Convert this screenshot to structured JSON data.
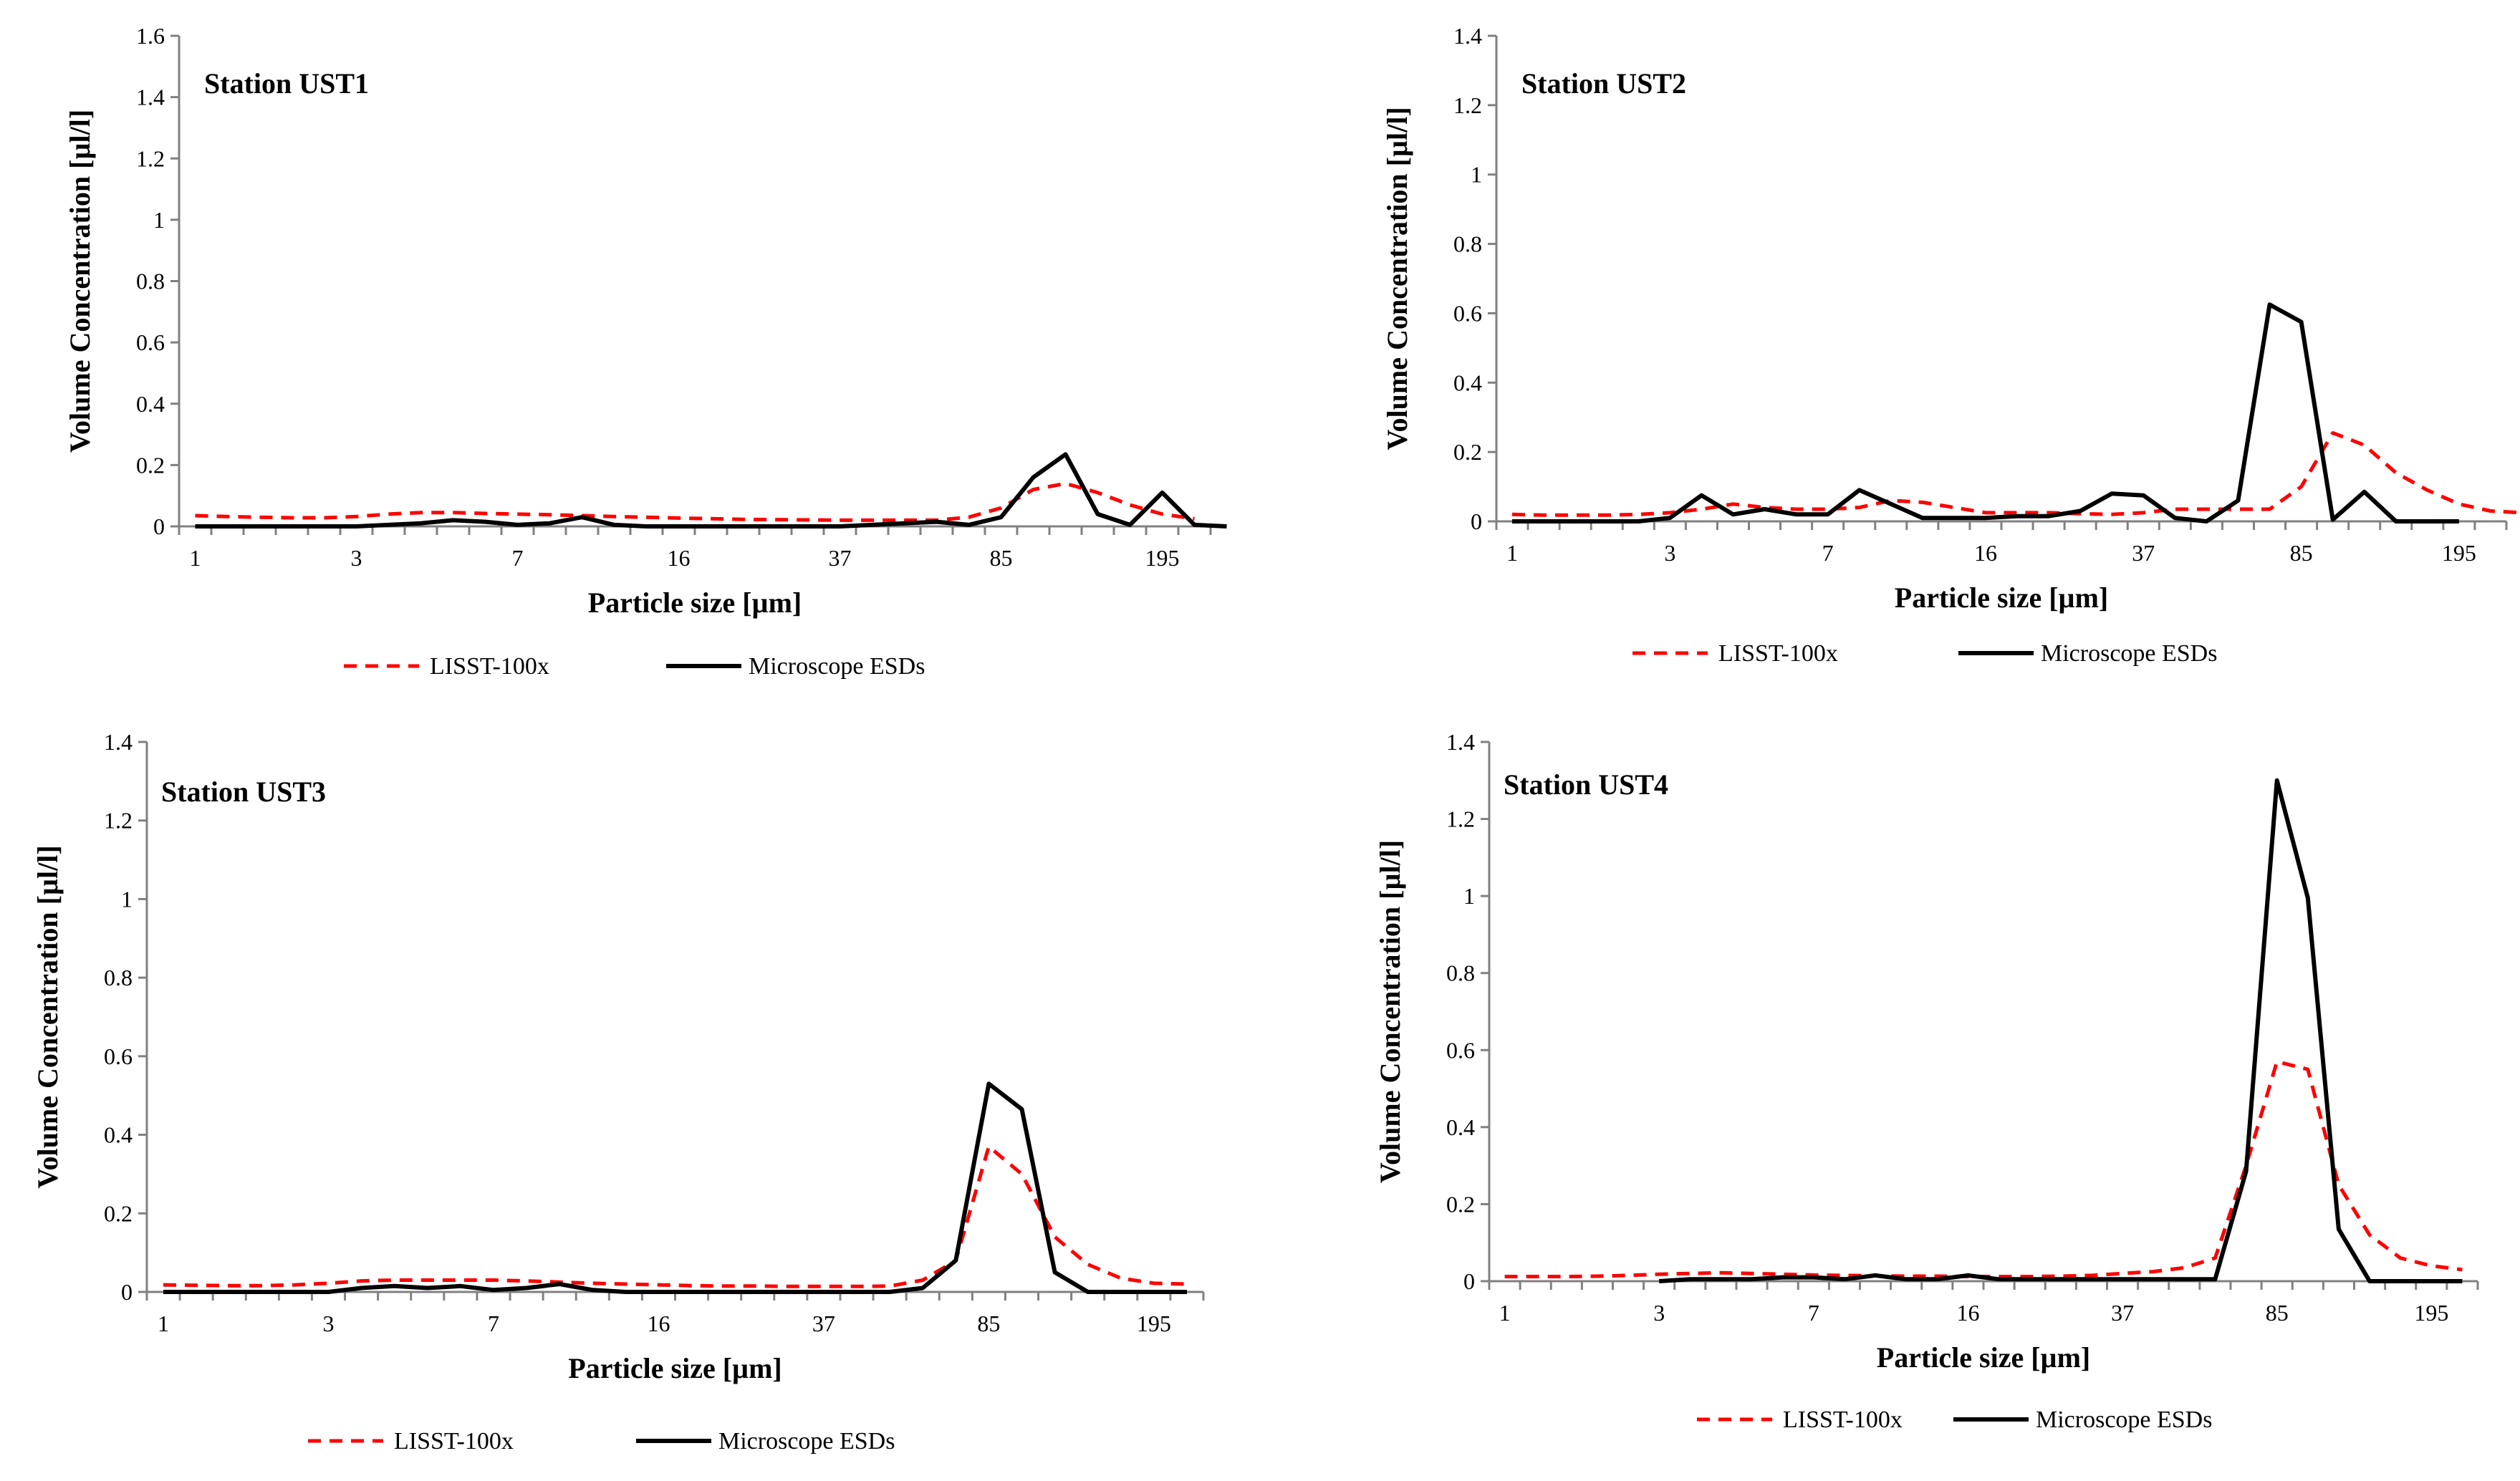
{
  "colors": {
    "lisst": "#ff0000",
    "microscope": "#000000",
    "axis": "#808080"
  },
  "chart_data": [
    {
      "type": "line",
      "title": "Station UST1",
      "xlabel": "Particle size [µm]",
      "ylabel": "Volume Concentration [µl/l]",
      "ylim": [
        0,
        1.6
      ],
      "yticks": [
        "0",
        "0.2",
        "0.4",
        "0.6",
        "0.8",
        "1",
        "1.2",
        "1.4",
        "1.6"
      ],
      "x_tick_labels": [
        {
          "index": 0,
          "label": "1"
        },
        {
          "index": 5,
          "label": "3"
        },
        {
          "index": 10,
          "label": "7"
        },
        {
          "index": 15,
          "label": "16"
        },
        {
          "index": 20,
          "label": "37"
        },
        {
          "index": 25,
          "label": "85"
        },
        {
          "index": 30,
          "label": "195"
        }
      ],
      "legend": [
        "LISST-100x",
        "Microscope ESDs"
      ],
      "series": [
        {
          "name": "LISST-100x",
          "style": "dashed",
          "values": [
            0.035,
            0.032,
            0.03,
            0.028,
            0.028,
            0.032,
            0.04,
            0.045,
            0.045,
            0.042,
            0.04,
            0.038,
            0.035,
            0.032,
            0.03,
            0.027,
            0.025,
            0.023,
            0.022,
            0.021,
            0.02,
            0.02,
            0.02,
            0.02,
            0.03,
            0.06,
            0.12,
            0.14,
            0.11,
            0.07,
            0.04,
            0.025
          ]
        },
        {
          "name": "Microscope ESDs",
          "style": "solid",
          "values": [
            0,
            0,
            0,
            0,
            0,
            0,
            0.005,
            0.01,
            0.02,
            0.015,
            0.005,
            0.01,
            0.03,
            0.005,
            0,
            0,
            0,
            0,
            0,
            0,
            0,
            0.005,
            0.01,
            0.015,
            0.005,
            0.03,
            0.16,
            0.235,
            0.04,
            0.005,
            0.11,
            0.005,
            0
          ]
        }
      ]
    },
    {
      "type": "line",
      "title": "Station UST2",
      "xlabel": "Particle size [µm]",
      "ylabel": "Volume Concentration [µl/l]",
      "ylim": [
        0,
        1.4
      ],
      "yticks": [
        "0",
        "0.2",
        "0.4",
        "0.6",
        "0.8",
        "1",
        "1.2",
        "1.4"
      ],
      "x_tick_labels": [
        {
          "index": 0,
          "label": "1"
        },
        {
          "index": 5,
          "label": "3"
        },
        {
          "index": 10,
          "label": "7"
        },
        {
          "index": 15,
          "label": "16"
        },
        {
          "index": 20,
          "label": "37"
        },
        {
          "index": 25,
          "label": "85"
        },
        {
          "index": 30,
          "label": "195"
        }
      ],
      "legend": [
        "LISST-100x",
        "Microscope ESDs"
      ],
      "series": [
        {
          "name": "LISST-100x",
          "style": "dashed",
          "values": [
            0.02,
            0.018,
            0.018,
            0.018,
            0.02,
            0.025,
            0.035,
            0.05,
            0.04,
            0.035,
            0.035,
            0.04,
            0.06,
            0.055,
            0.04,
            0.025,
            0.025,
            0.025,
            0.022,
            0.02,
            0.025,
            0.035,
            0.035,
            0.035,
            0.035,
            0.1,
            0.255,
            0.22,
            0.14,
            0.09,
            0.05,
            0.03,
            0.025
          ]
        },
        {
          "name": "Microscope ESDs",
          "style": "solid",
          "values": [
            0,
            0,
            0,
            0,
            0,
            0.01,
            0.075,
            0.02,
            0.035,
            0.02,
            0.02,
            0.09,
            0.05,
            0.01,
            0.01,
            0.01,
            0.015,
            0.015,
            0.03,
            0.08,
            0.075,
            0.01,
            0,
            0.06,
            0.625,
            0.575,
            0.005,
            0.085,
            0,
            0,
            0
          ]
        }
      ]
    },
    {
      "type": "line",
      "title": "Station UST3",
      "xlabel": "Particle size [µm]",
      "ylabel": "Volume Concentration [µl/l]",
      "ylim": [
        0,
        1.4
      ],
      "yticks": [
        "0",
        "0.2",
        "0.4",
        "0.6",
        "0.8",
        "1",
        "1.2",
        "1.4"
      ],
      "x_tick_labels": [
        {
          "index": 0,
          "label": "1"
        },
        {
          "index": 5,
          "label": "3"
        },
        {
          "index": 10,
          "label": "7"
        },
        {
          "index": 15,
          "label": "16"
        },
        {
          "index": 20,
          "label": "37"
        },
        {
          "index": 25,
          "label": "85"
        },
        {
          "index": 30,
          "label": "195"
        }
      ],
      "legend": [
        "LISST-100x",
        "Microscope ESDs"
      ],
      "series": [
        {
          "name": "LISST-100x",
          "style": "dashed",
          "values": [
            0.018,
            0.017,
            0.016,
            0.016,
            0.018,
            0.022,
            0.028,
            0.03,
            0.03,
            0.03,
            0.03,
            0.028,
            0.025,
            0.022,
            0.02,
            0.018,
            0.016,
            0.015,
            0.015,
            0.014,
            0.014,
            0.014,
            0.015,
            0.03,
            0.08,
            0.37,
            0.3,
            0.14,
            0.07,
            0.035,
            0.022,
            0.02
          ]
        },
        {
          "name": "Microscope ESDs",
          "style": "solid",
          "values": [
            0,
            0,
            0,
            0,
            0,
            0,
            0.01,
            0.015,
            0.01,
            0.015,
            0.005,
            0.01,
            0.02,
            0.005,
            0,
            0,
            0,
            0,
            0,
            0,
            0,
            0,
            0,
            0.01,
            0.08,
            0.53,
            0.465,
            0.05,
            0,
            0,
            0,
            0
          ]
        }
      ]
    },
    {
      "type": "line",
      "title": "Station UST4",
      "xlabel": "Particle size [µm]",
      "ylabel": "Volume Concentration [µl/l]",
      "ylim": [
        0,
        1.4
      ],
      "yticks": [
        "0",
        "0.2",
        "0.4",
        "0.6",
        "0.8",
        "1",
        "1.2",
        "1.4"
      ],
      "x_tick_labels": [
        {
          "index": 0,
          "label": "1"
        },
        {
          "index": 5,
          "label": "3"
        },
        {
          "index": 10,
          "label": "7"
        },
        {
          "index": 15,
          "label": "16"
        },
        {
          "index": 20,
          "label": "37"
        },
        {
          "index": 25,
          "label": "85"
        },
        {
          "index": 30,
          "label": "195"
        }
      ],
      "legend": [
        "LISST-100x",
        "Microscope ESDs"
      ],
      "series": [
        {
          "name": "LISST-100x",
          "style": "dashed",
          "values": [
            0.012,
            0.012,
            0.012,
            0.013,
            0.015,
            0.018,
            0.02,
            0.022,
            0.02,
            0.018,
            0.016,
            0.015,
            0.014,
            0.013,
            0.013,
            0.012,
            0.012,
            0.012,
            0.013,
            0.015,
            0.02,
            0.025,
            0.035,
            0.06,
            0.3,
            0.57,
            0.55,
            0.25,
            0.12,
            0.06,
            0.04,
            0.03
          ]
        },
        {
          "name": "Microscope ESDs",
          "style": "solid",
          "start_index": 5,
          "values": [
            0,
            0.005,
            0.005,
            0.005,
            0.01,
            0.01,
            0.005,
            0.015,
            0.005,
            0.005,
            0.015,
            0.005,
            0.005,
            0.005,
            0.005,
            0.005,
            0.005,
            0.005,
            0.005,
            0.285,
            1.3,
            0.995,
            0.135,
            0,
            0,
            0,
            0
          ]
        }
      ]
    }
  ]
}
